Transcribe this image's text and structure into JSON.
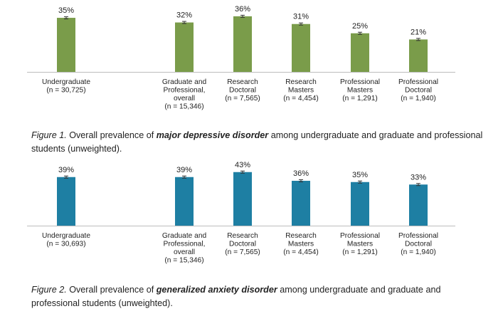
{
  "chart_data": [
    {
      "type": "bar",
      "title": "",
      "xlabel": "",
      "ylabel": "",
      "ylim": [
        0,
        40
      ],
      "categories": [
        [
          "Undergraduate",
          "(n = 30,725)"
        ],
        [
          "Graduate and",
          "Professional,",
          "overall",
          "(n = 15,346)"
        ],
        [
          "Research",
          "Doctoral",
          "(n = 7,565)"
        ],
        [
          "Research",
          "Masters",
          "(n = 4,454)"
        ],
        [
          "Professional",
          "Masters",
          "(n = 1,291)"
        ],
        [
          "Professional",
          "Doctoral",
          "(n = 1,940)"
        ]
      ],
      "values": [
        35,
        32,
        36,
        31,
        25,
        21
      ],
      "value_labels": [
        "35%",
        "32%",
        "36%",
        "31%",
        "25%",
        "21%"
      ],
      "error_bars": true,
      "grid": false,
      "color": "#7a9c4a"
    },
    {
      "type": "bar",
      "title": "",
      "xlabel": "",
      "ylabel": "",
      "ylim": [
        0,
        40
      ],
      "categories": [
        [
          "Undergraduate",
          "(n = 30,693)"
        ],
        [
          "Graduate and",
          "Professional,",
          "overall",
          "(n = 15,346)"
        ],
        [
          "Research",
          "Doctoral",
          "(n = 7,565)"
        ],
        [
          "Research",
          "Masters",
          "(n = 4,454)"
        ],
        [
          "Professional",
          "Masters",
          "(n = 1,291)"
        ],
        [
          "Professional",
          "Doctoral",
          "(n = 1,940)"
        ]
      ],
      "values": [
        39,
        39,
        43,
        36,
        35,
        33
      ],
      "value_labels": [
        "39%",
        "39%",
        "43%",
        "36%",
        "35%",
        "33%"
      ],
      "error_bars": true,
      "grid": false,
      "color": "#1e7fa3"
    }
  ],
  "captions": [
    {
      "label": "Figure 1.",
      "before": " Overall prevalence of ",
      "emphasis": "major depressive disorder",
      "after": " among undergraduate and graduate and professional students (unweighted)."
    },
    {
      "label": "Figure 2.",
      "before": " Overall prevalence of ",
      "emphasis": "generalized anxiety disorder",
      "after": " among undergraduate and graduate and professional students (unweighted)."
    }
  ]
}
